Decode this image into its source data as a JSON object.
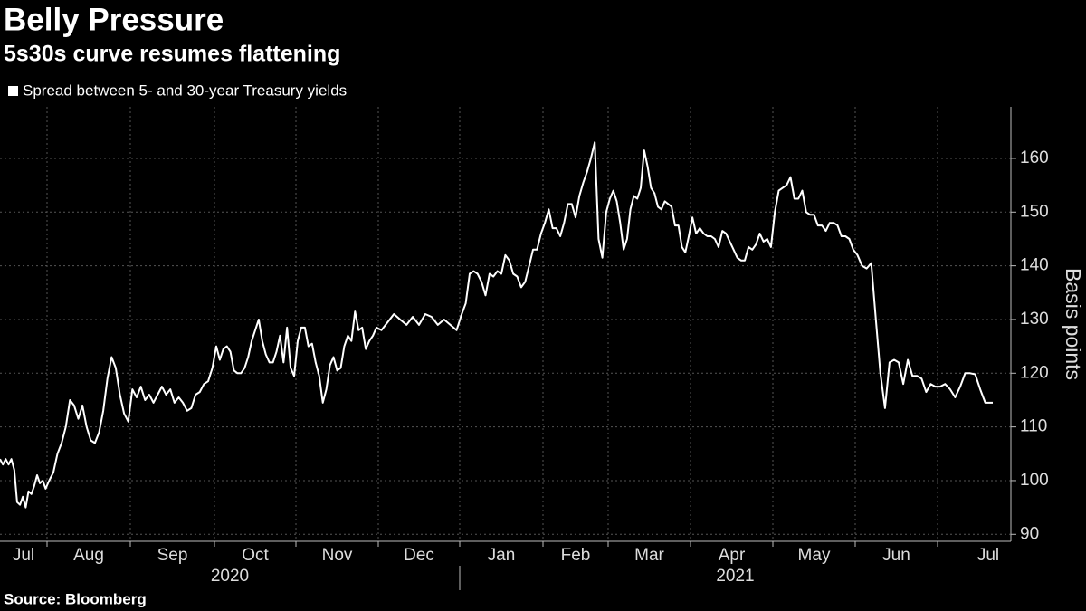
{
  "chart_data": {
    "type": "line",
    "title": "Belly Pressure",
    "subtitle": "5s30s curve resumes flattening",
    "source": "Source: Bloomberg",
    "y_axis_label": "Basis points",
    "series": [
      {
        "name": "Spread between 5- and 30-year Treasury yields",
        "color": "#ffffff"
      }
    ],
    "months": [
      {
        "label": "Jul",
        "values": [
          104,
          103,
          104,
          103,
          104,
          102,
          96,
          95.5,
          97,
          95,
          98,
          97.5,
          99,
          101,
          99.5,
          100,
          98.5
        ]
      },
      {
        "label": "Aug",
        "values": [
          100,
          101.5,
          105,
          107,
          110,
          115,
          114,
          111.5,
          114,
          110,
          107.5,
          107,
          109,
          113,
          119,
          123,
          121,
          116,
          112.5,
          111
        ]
      },
      {
        "label": "Sep",
        "values": [
          117,
          115.5,
          117.5,
          115,
          116,
          114.5,
          116,
          117.5,
          116,
          117,
          114.5,
          115.5,
          114.5,
          113,
          113.5,
          116,
          116.5,
          118,
          118.5,
          121
        ]
      },
      {
        "label": "Oct",
        "values": [
          125,
          122.5,
          124.5,
          125,
          124,
          120.5,
          120,
          120,
          121,
          123,
          126,
          128,
          130,
          126,
          123.5,
          122,
          122,
          124,
          127,
          122,
          128.5,
          121,
          119.5
        ]
      },
      {
        "label": "Nov",
        "values": [
          126,
          128.5,
          128.5,
          125,
          125.5,
          122,
          119.5,
          114.5,
          117,
          121.5,
          123,
          120.5,
          121,
          125,
          127,
          126,
          131.5,
          128,
          128.5,
          124.5,
          126,
          127,
          128.5
        ]
      },
      {
        "label": "Dec",
        "values": [
          128,
          129.5,
          131,
          130,
          129,
          130.5,
          129,
          131,
          130.5,
          129,
          130,
          129,
          128
        ]
      },
      {
        "label": "Jan",
        "values": [
          131,
          133,
          138.5,
          139,
          138.5,
          137,
          134.5,
          138.5,
          138,
          139,
          138.5,
          142,
          141,
          138.5,
          138,
          136,
          137,
          140,
          143,
          143,
          146
        ]
      },
      {
        "label": "Feb",
        "values": [
          148,
          150.5,
          147,
          147,
          145.5,
          148,
          151.5,
          151.5,
          149,
          153,
          155.5,
          157.5,
          160,
          163,
          145,
          141.5,
          150
        ]
      },
      {
        "label": "Mar",
        "values": [
          152.5,
          154,
          152,
          148,
          143,
          145,
          150.5,
          153,
          152.5,
          154.5,
          161.5,
          158.5,
          154.5,
          153.5,
          151,
          150.5,
          152,
          151.5,
          151,
          147.5,
          147.5,
          143.5,
          142.5,
          145.5
        ]
      },
      {
        "label": "Apr",
        "values": [
          149,
          146,
          147,
          146,
          145.5,
          145.5,
          145,
          143.5,
          146.5,
          146,
          144.5,
          143,
          141.5,
          141,
          141,
          143.5,
          143,
          144,
          146,
          144.5,
          145,
          143.5
        ]
      },
      {
        "label": "May",
        "values": [
          150,
          154,
          154.5,
          155,
          156.5,
          152.5,
          152.5,
          154,
          150,
          149.5,
          149.5,
          147.5,
          147.5,
          146.5,
          148,
          148,
          147.5,
          145.5,
          145.5,
          145,
          143
        ]
      },
      {
        "label": "Jun",
        "values": [
          142,
          140,
          139.5,
          140.5,
          130,
          120,
          113.5,
          122,
          122.5,
          122,
          118,
          122.5,
          119.5,
          119.5,
          119,
          116.5,
          118,
          117.5
        ]
      },
      {
        "label": "Jul",
        "values": [
          117.5,
          118,
          117,
          115.5,
          117.5,
          120,
          120,
          119.8,
          117,
          114.5,
          114.5
        ]
      }
    ],
    "years": [
      "2020",
      "2021"
    ],
    "ylim": [
      88.7,
      169.6
    ],
    "yticks": [
      90,
      100,
      110,
      120,
      130,
      140,
      150,
      160
    ],
    "grid": true
  }
}
